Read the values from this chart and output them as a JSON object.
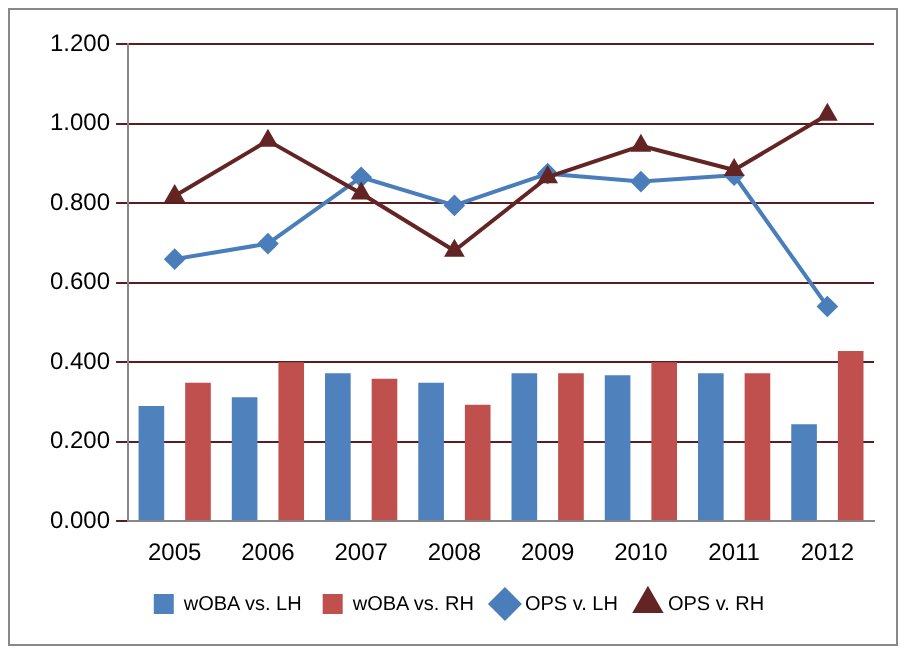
{
  "chart_data": {
    "type": "bar",
    "categories": [
      "2005",
      "2006",
      "2007",
      "2008",
      "2009",
      "2010",
      "2011",
      "2012"
    ],
    "series": [
      {
        "name": "wOBA vs. LH",
        "color": "#4f81bd",
        "values": [
          0.29,
          0.312,
          0.372,
          0.348,
          0.372,
          0.367,
          0.372,
          0.244
        ]
      },
      {
        "name": "wOBA vs. RH",
        "color": "#c0504d",
        "values": [
          0.348,
          0.4,
          0.358,
          0.293,
          0.372,
          0.4,
          0.372,
          0.428
        ]
      },
      {
        "name": "OPS v. LH",
        "type": "line",
        "marker": "diamond",
        "color": "#4a7ebb",
        "values": [
          0.659,
          0.698,
          0.865,
          0.794,
          0.874,
          0.854,
          0.87,
          0.54
        ]
      },
      {
        "name": "OPS v. RH",
        "type": "line",
        "marker": "triangle",
        "color": "#632523",
        "values": [
          0.818,
          0.957,
          0.824,
          0.68,
          0.865,
          0.944,
          0.883,
          1.022
        ]
      }
    ],
    "ylim": [
      0,
      1.2
    ],
    "yticks": [
      {
        "value": 0,
        "label": "0.000"
      },
      {
        "value": 0.2,
        "label": "0.200"
      },
      {
        "value": 0.4,
        "label": "0.400"
      },
      {
        "value": 0.6,
        "label": "0.600"
      },
      {
        "value": 0.8,
        "label": "0.800"
      },
      {
        "value": 1,
        "label": "1.000"
      },
      {
        "value": 1.2,
        "label": "1.200"
      }
    ],
    "grid": "y",
    "legend": "bottom"
  }
}
